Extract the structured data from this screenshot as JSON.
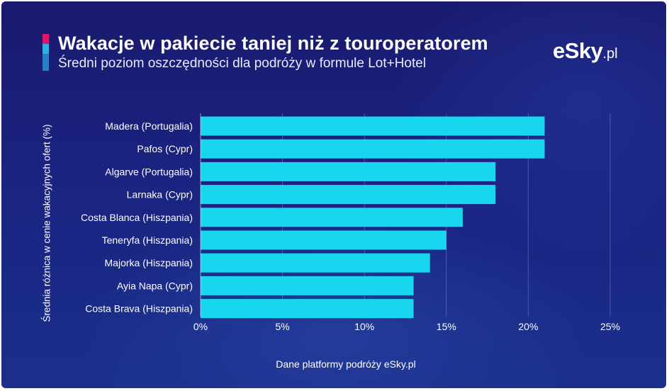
{
  "brand": {
    "logo_text": "eSky",
    "logo_tld": ".pl",
    "accent_colors": [
      "#e0166e",
      "#2fb0e0",
      "#2c7cc8"
    ],
    "bar_color": "#19d6ef",
    "background_color": "#1a2380"
  },
  "chart_data": {
    "type": "bar",
    "orientation": "horizontal",
    "title": "Wakacje w pakiecie taniej niż z touroperatorem",
    "subtitle": "Średni poziom oszczędności dla podróży w formule Lot+Hotel",
    "ylabel": "Średnia różnica w cenie wakacyjnych ofert (%)",
    "xlabel": "",
    "source": "Dane platformy podróży eSky.pl",
    "categories": [
      "Madera (Portugalia)",
      "Pafos (Cypr)",
      "Algarve (Portugalia)",
      "Larnaka (Cypr)",
      "Costa Blanca (Hiszpania)",
      "Teneryfa (Hiszpania)",
      "Majorka (Hiszpania)",
      "Ayia Napa (Cypr)",
      "Costa Brava (Hiszpania)"
    ],
    "values": [
      21,
      21,
      18,
      18,
      16,
      15,
      14,
      13,
      13
    ],
    "xlim": [
      0,
      25
    ],
    "xticks": [
      0,
      5,
      10,
      15,
      20,
      25
    ],
    "xtick_labels": [
      "0%",
      "5%",
      "10%",
      "15%",
      "20%",
      "25%"
    ],
    "grid": "vertical",
    "legend": "none"
  }
}
